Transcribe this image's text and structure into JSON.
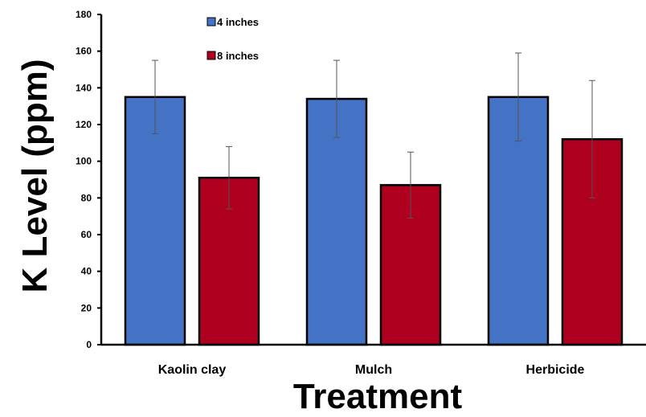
{
  "chart_data": {
    "type": "bar",
    "title": "",
    "xlabel": "Treatment",
    "ylabel": "K Level (ppm)",
    "ylim": [
      0,
      180
    ],
    "yticks": [
      0,
      20,
      40,
      60,
      80,
      100,
      120,
      140,
      160,
      180
    ],
    "categories": [
      "Kaolin clay",
      "Mulch",
      "Herbicide"
    ],
    "series": [
      {
        "name": "4 inches",
        "color": "#4472c4",
        "values": [
          135,
          134,
          135
        ],
        "error": [
          20,
          21,
          24
        ]
      },
      {
        "name": "8 inches",
        "color": "#b00020",
        "values": [
          91,
          87,
          112
        ],
        "error": [
          17,
          18,
          32
        ]
      }
    ],
    "grid": false,
    "legend_position": "top-left"
  }
}
